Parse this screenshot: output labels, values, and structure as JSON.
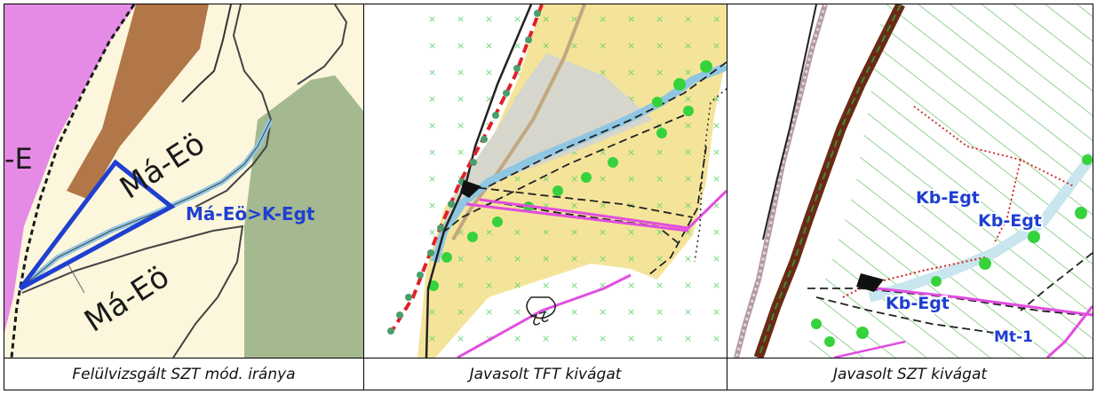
{
  "panels": [
    {
      "caption": "Felülvizsgált SZT mód. iránya",
      "labels": {
        "edge": "-E",
        "zone_upper": "Má-Eö",
        "zone_lower": "Má-Eö",
        "change": "Má-Eö>K-Egt"
      }
    },
    {
      "caption": "Javasolt TFT kivágat",
      "labels": {
        "road_number": "22"
      }
    },
    {
      "caption": "Javasolt SZT kivágat",
      "labels": {
        "kb1": "Kb-Egt",
        "kb2": "Kb-Egt",
        "kb3": "Kb-Egt",
        "mt": "Mt-1"
      }
    }
  ],
  "colors": {
    "pink": "#e58be6",
    "brown": "#b27748",
    "cream": "#fbf6dc",
    "green_gray": "#a4b98f",
    "blue": "#1f3fd0",
    "light_blue": "#8fc7e3",
    "yellow": "#f4e49a",
    "gray_fill": "#d6d6cc",
    "magenta": "#e24de0",
    "bright_green": "#36d23c",
    "red_dashed": "#e0202a",
    "dark_red_brown": "#6b2a14"
  }
}
